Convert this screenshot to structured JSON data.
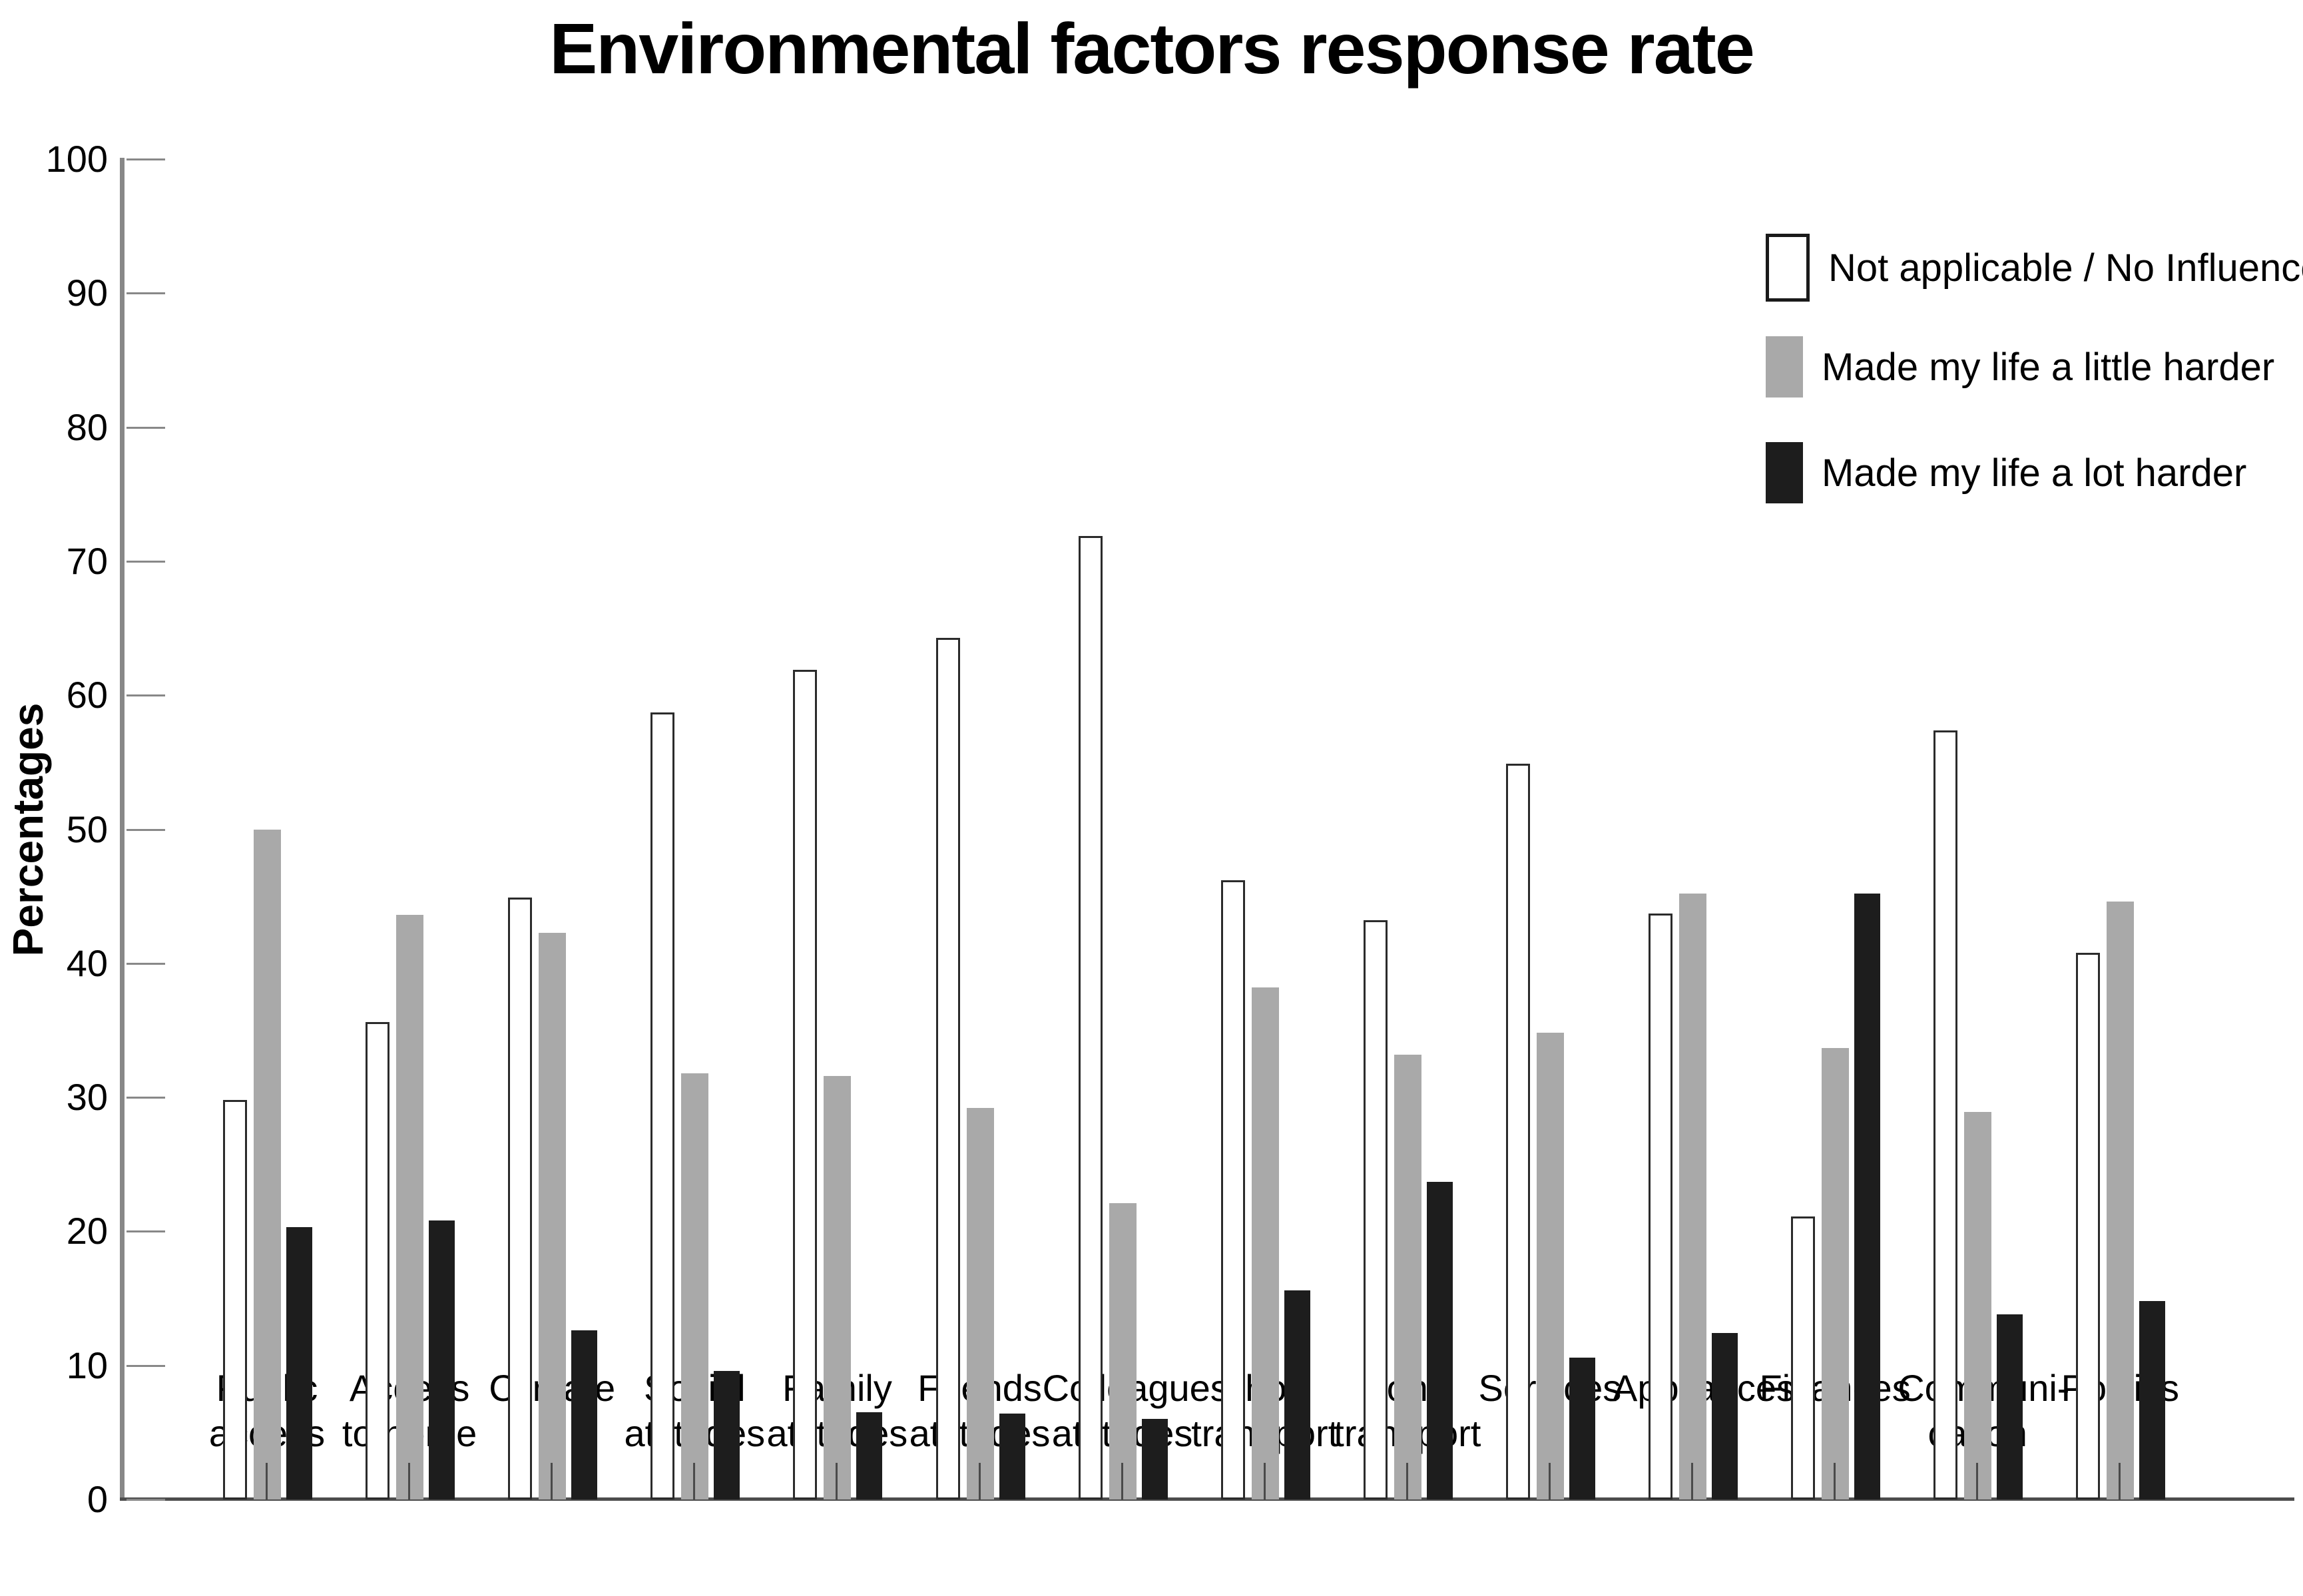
{
  "title": "Environmental factors response rate",
  "y_axis": {
    "label": "Percentages",
    "ticks": [
      0,
      10,
      20,
      30,
      40,
      50,
      60,
      70,
      80,
      90,
      100
    ],
    "min": 0,
    "max": 100
  },
  "legend": {
    "items": [
      {
        "label": "Not applicable / No Influence",
        "color": "#ffffff",
        "border": "#1a1a1a"
      },
      {
        "label": "Made my life a little harder",
        "color": "#a9a9a9",
        "border": null
      },
      {
        "label": "Made my life a lot harder",
        "color": "#1d1d1d",
        "border": null
      }
    ]
  },
  "colors": {
    "bar_white_fill": "#ffffff",
    "bar_white_border": "#2b2b2b",
    "bar_gray": "#a9a9a9",
    "bar_black": "#1d1d1d",
    "axis": "#4d4d4d"
  },
  "chart_data": {
    "type": "bar",
    "title": "Environmental factors response rate",
    "xlabel": "",
    "ylabel": "Percentages",
    "ylim": [
      0,
      100
    ],
    "grid": false,
    "legend_position": "top-right",
    "categories": [
      "Public access",
      "Access to home",
      "Climate",
      "Social attitudes",
      "Family attitudes",
      "Friends attitudes",
      "Colleagues attitudes",
      "Short transport",
      "Long transport",
      "Services",
      "Appliances",
      "Finances",
      "Communication",
      "Politics"
    ],
    "category_label_lines": [
      [
        "Public",
        "access"
      ],
      [
        "Access",
        "to home"
      ],
      [
        "Climate",
        ""
      ],
      [
        "Social",
        "attitudes"
      ],
      [
        "Family",
        "attitudes"
      ],
      [
        "Friends",
        "attitudes"
      ],
      [
        "Colleagues",
        "attitudes"
      ],
      [
        "Short",
        "transport"
      ],
      [
        "Long",
        "transport"
      ],
      [
        "Services",
        ""
      ],
      [
        "Appliances",
        ""
      ],
      [
        "Finances",
        ""
      ],
      [
        "Communi-",
        "cation"
      ],
      [
        "Politics",
        ""
      ]
    ],
    "series": [
      {
        "name": "Not applicable / No Influence",
        "key": "not-applicable",
        "values": [
          29.8,
          35.6,
          44.9,
          58.7,
          61.9,
          64.3,
          71.9,
          46.2,
          43.2,
          54.9,
          43.7,
          21.1,
          57.4,
          40.8
        ]
      },
      {
        "name": "Made my life a little harder",
        "key": "little-harder",
        "values": [
          50.0,
          43.6,
          42.3,
          31.8,
          31.6,
          29.2,
          22.1,
          38.2,
          33.2,
          34.8,
          45.2,
          33.7,
          28.9,
          44.6
        ]
      },
      {
        "name": "Made my life a lot harder",
        "key": "lot-harder",
        "values": [
          20.3,
          20.8,
          12.6,
          9.6,
          6.5,
          6.4,
          6.0,
          15.6,
          23.7,
          10.6,
          12.4,
          45.2,
          13.8,
          14.8
        ]
      }
    ]
  }
}
